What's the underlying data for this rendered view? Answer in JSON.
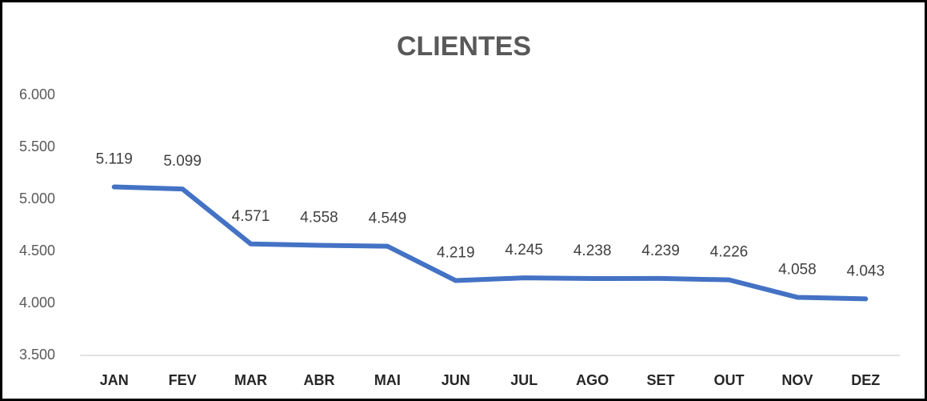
{
  "chart_data": {
    "type": "line",
    "title": "CLIENTES",
    "categories": [
      "JAN",
      "FEV",
      "MAR",
      "ABR",
      "MAI",
      "JUN",
      "JUL",
      "AGO",
      "SET",
      "OUT",
      "NOV",
      "DEZ"
    ],
    "values": [
      5119,
      5099,
      4571,
      4558,
      4549,
      4219,
      4245,
      4238,
      4239,
      4226,
      4058,
      4043
    ],
    "value_labels": [
      "5.119",
      "5.099",
      "4.571",
      "4.558",
      "4.549",
      "4.219",
      "4.245",
      "4.238",
      "4.239",
      "4.226",
      "4.058",
      "4.043"
    ],
    "color": "#4472c4",
    "ylim": [
      3500,
      6000
    ],
    "yticks": [
      {
        "value": 3500,
        "label": "3.500"
      },
      {
        "value": 4000,
        "label": "4.000"
      },
      {
        "value": 4500,
        "label": "4.500"
      },
      {
        "value": 5000,
        "label": "5.000"
      },
      {
        "value": 5500,
        "label": "5.500"
      },
      {
        "value": 6000,
        "label": "6.000"
      }
    ],
    "grid": false
  }
}
